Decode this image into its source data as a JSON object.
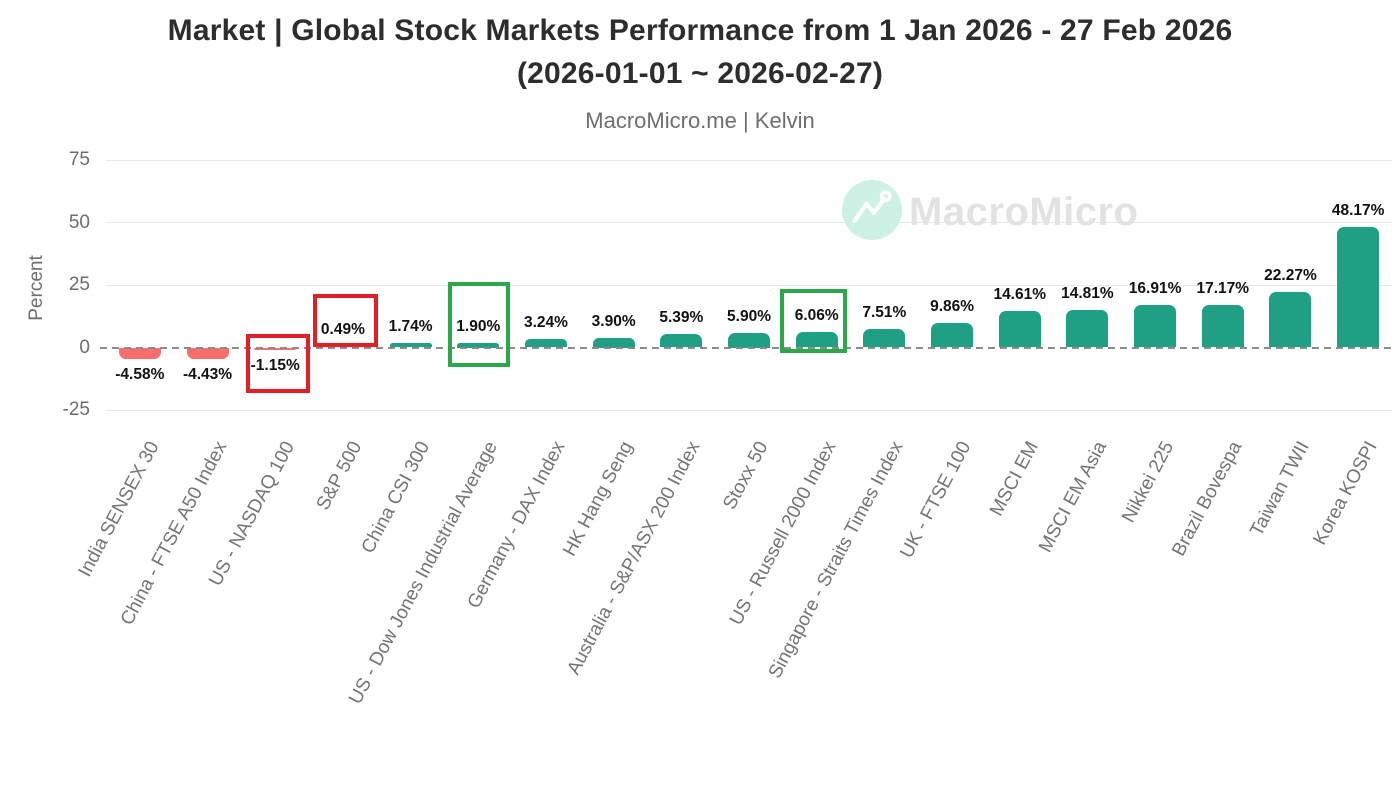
{
  "header": {
    "title_line1": "Market | Global Stock Markets Performance from 1 Jan 2026 - 27 Feb 2026",
    "title_line2": "(2026-01-01 ~ 2026-02-27)",
    "subtitle": "MacroMicro.me | Kelvin"
  },
  "watermark": {
    "text": "MacroMicro",
    "icon": "macromicro-mountain-chart-icon"
  },
  "chart_data": {
    "type": "bar",
    "title": "Market | Global Stock Markets Performance from 1 Jan 2026 - 27 Feb 2026 (2026-01-01 ~ 2026-02-27)",
    "subtitle": "MacroMicro.me | Kelvin",
    "xlabel": "",
    "ylabel": "Percent",
    "ylim": [
      -25,
      75
    ],
    "yticks": [
      75,
      50,
      25,
      0,
      -25
    ],
    "grid": true,
    "zero_line_style": "dashed",
    "legend": "none",
    "categories": [
      "India SENSEX 30",
      "China - FTSE A50 Index",
      "US - NASDAQ 100",
      "S&P 500",
      "China CSI 300",
      "US - Dow Jones Industrial Average",
      "Germany - DAX Index",
      "HK Hang Seng",
      "Australia - S&P/ASX 200 Index",
      "Stoxx 50",
      "US - Russell 2000 Index",
      "Singapore - Straits Times Index",
      "UK - FTSE 100",
      "MSCI EM",
      "MSCI EM Asia",
      "Nikkei 225",
      "Brazil Bovespa",
      "Taiwan TWII",
      "Korea KOSPI"
    ],
    "values": [
      -4.58,
      -4.43,
      -1.15,
      0.49,
      1.74,
      1.9,
      3.24,
      3.9,
      5.39,
      5.9,
      6.06,
      7.51,
      9.86,
      14.61,
      14.81,
      16.91,
      17.17,
      22.27,
      48.17
    ],
    "value_labels": [
      "-4.58%",
      "-4.43%",
      "-1.15%",
      "0.49%",
      "1.74%",
      "1.90%",
      "3.24%",
      "3.90%",
      "5.39%",
      "5.90%",
      "6.06%",
      "7.51%",
      "9.86%",
      "14.61%",
      "14.81%",
      "16.91%",
      "17.17%",
      "22.27%",
      "48.17%"
    ],
    "highlights": [
      null,
      null,
      "red",
      "red",
      null,
      "green",
      null,
      null,
      null,
      null,
      "green",
      null,
      null,
      null,
      null,
      null,
      null,
      null,
      null
    ],
    "colors": {
      "positive_bar": "#1fa084",
      "negative_bar": "#f76e6e",
      "highlight_red": "#e31e24",
      "highlight_green": "#2aa84a",
      "gridline": "#e8e8e8",
      "zero_line": "#8c8c8c",
      "axis_text": "#6d6d6d",
      "category_text": "#757575",
      "value_text": "#111111",
      "title_text": "#2d2d2d",
      "watermark": "#e2e2e2",
      "watermark_circle": "#cdf2e5"
    }
  }
}
